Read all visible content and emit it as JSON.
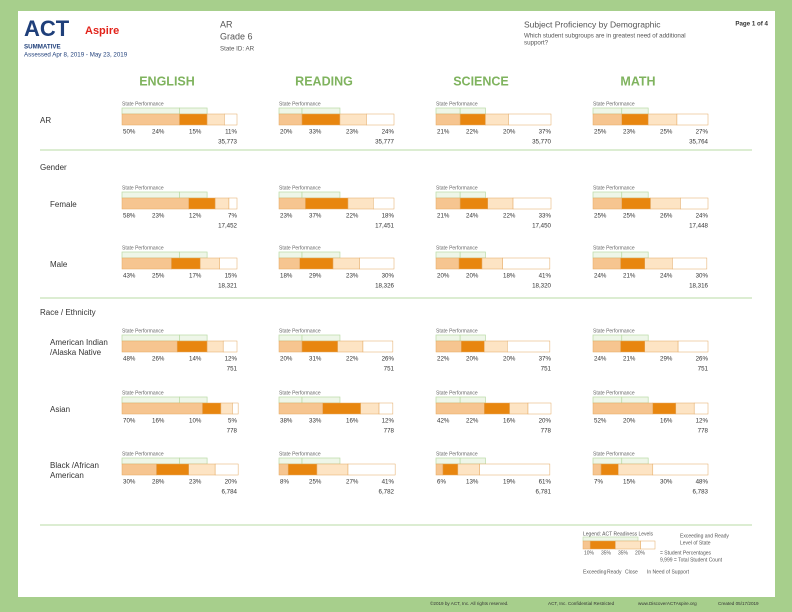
{
  "header": {
    "logo_act": "ACT",
    "logo_aspire": "Aspire",
    "test_type": "SUMMATIVE",
    "assessed": "Assessed Apr 8, 2019 - May 23, 2019",
    "state": "AR",
    "grade": "Grade 6",
    "state_id": "State ID: AR",
    "report_title": "Subject Proficiency by Demographic",
    "question": [
      "Which student subgroups are in greatest need of additional",
      "support?"
    ],
    "page": "Page 1 of 4"
  },
  "state_label": "State Performance",
  "subjects": [
    "ENGLISH",
    "READING",
    "SCIENCE",
    "MATH"
  ],
  "top_row": {
    "label": "AR",
    "cells": [
      {
        "values": [
          50,
          24,
          15,
          11
        ],
        "value_labels": [
          "50%",
          "24%",
          "15%",
          "11%"
        ],
        "count": "35,773"
      },
      {
        "values": [
          20,
          33,
          23,
          24
        ],
        "value_labels": [
          "20%",
          "33%",
          "23%",
          "24%"
        ],
        "count": "35,777"
      },
      {
        "values": [
          21,
          22,
          20,
          37
        ],
        "value_labels": [
          "21%",
          "22%",
          "20%",
          "37%"
        ],
        "count": "35,770"
      },
      {
        "values": [
          25,
          23,
          25,
          27
        ],
        "value_labels": [
          "25%",
          "23%",
          "25%",
          "27%"
        ],
        "count": "35,764"
      }
    ]
  },
  "sections": [
    {
      "title": "Gender",
      "rows": [
        {
          "label": [
            "Female"
          ],
          "cells": [
            {
              "values": [
                58,
                23,
                12,
                7
              ],
              "value_labels": [
                "58%",
                "23%",
                "12%",
                "7%"
              ],
              "count": "17,452"
            },
            {
              "values": [
                23,
                37,
                22,
                18
              ],
              "value_labels": [
                "23%",
                "37%",
                "22%",
                "18%"
              ],
              "count": "17,451"
            },
            {
              "values": [
                21,
                24,
                22,
                33
              ],
              "value_labels": [
                "21%",
                "24%",
                "22%",
                "33%"
              ],
              "count": "17,450"
            },
            {
              "values": [
                25,
                25,
                26,
                24
              ],
              "value_labels": [
                "25%",
                "25%",
                "26%",
                "24%"
              ],
              "count": "17,448"
            }
          ]
        },
        {
          "label": [
            "Male"
          ],
          "cells": [
            {
              "values": [
                43,
                25,
                17,
                15
              ],
              "value_labels": [
                "43%",
                "25%",
                "17%",
                "15%"
              ],
              "count": "18,321"
            },
            {
              "values": [
                18,
                29,
                23,
                30
              ],
              "value_labels": [
                "18%",
                "29%",
                "23%",
                "30%"
              ],
              "count": "18,326"
            },
            {
              "values": [
                20,
                20,
                18,
                41
              ],
              "value_labels": [
                "20%",
                "20%",
                "18%",
                "41%"
              ],
              "count": "18,320"
            },
            {
              "values": [
                24,
                21,
                24,
                30
              ],
              "value_labels": [
                "24%",
                "21%",
                "24%",
                "30%"
              ],
              "count": "18,316"
            }
          ]
        }
      ]
    },
    {
      "title": "Race / Ethnicity",
      "rows": [
        {
          "label": [
            "American Indian",
            "/Alaska Native"
          ],
          "cells": [
            {
              "values": [
                48,
                26,
                14,
                12
              ],
              "value_labels": [
                "48%",
                "26%",
                "14%",
                "12%"
              ],
              "count": "751"
            },
            {
              "values": [
                20,
                31,
                22,
                26
              ],
              "value_labels": [
                "20%",
                "31%",
                "22%",
                "26%"
              ],
              "count": "751"
            },
            {
              "values": [
                22,
                20,
                20,
                37
              ],
              "value_labels": [
                "22%",
                "20%",
                "20%",
                "37%"
              ],
              "count": "751"
            },
            {
              "values": [
                24,
                21,
                29,
                26
              ],
              "value_labels": [
                "24%",
                "21%",
                "29%",
                "26%"
              ],
              "count": "751"
            }
          ]
        },
        {
          "label": [
            "Asian"
          ],
          "cells": [
            {
              "values": [
                70,
                16,
                10,
                5
              ],
              "value_labels": [
                "70%",
                "16%",
                "10%",
                "5%"
              ],
              "count": "778"
            },
            {
              "values": [
                38,
                33,
                16,
                12
              ],
              "value_labels": [
                "38%",
                "33%",
                "16%",
                "12%"
              ],
              "count": "778"
            },
            {
              "values": [
                42,
                22,
                16,
                20
              ],
              "value_labels": [
                "42%",
                "22%",
                "16%",
                "20%"
              ],
              "count": "778"
            },
            {
              "values": [
                52,
                20,
                16,
                12
              ],
              "value_labels": [
                "52%",
                "20%",
                "16%",
                "12%"
              ],
              "count": "778"
            }
          ]
        },
        {
          "label": [
            "Black /African",
            "American"
          ],
          "cells": [
            {
              "values": [
                30,
                28,
                23,
                20
              ],
              "value_labels": [
                "30%",
                "28%",
                "23%",
                "20%"
              ],
              "count": "6,784"
            },
            {
              "values": [
                8,
                25,
                27,
                41
              ],
              "value_labels": [
                "8%",
                "25%",
                "27%",
                "41%"
              ],
              "count": "6,782"
            },
            {
              "values": [
                6,
                13,
                19,
                61
              ],
              "value_labels": [
                "6%",
                "13%",
                "19%",
                "61%"
              ],
              "count": "6,781"
            },
            {
              "values": [
                7,
                15,
                30,
                48
              ],
              "value_labels": [
                "7%",
                "15%",
                "30%",
                "48%"
              ],
              "count": "6,783"
            }
          ]
        }
      ]
    }
  ],
  "legend": {
    "title": "Legend: ACT Readiness Levels",
    "values": [
      10,
      35,
      35,
      20
    ],
    "value_labels": [
      "10%",
      "35%",
      "35%",
      "20%"
    ],
    "state_note": [
      "Exceeding and Ready",
      "Level of State"
    ],
    "pct_note": "= Student Percentages",
    "count_note": "9,999 = Total Student Count",
    "levels": [
      "Exceeding",
      "Ready",
      "Close",
      "In Need of Support"
    ]
  },
  "footer": [
    "©2019 by ACT, Inc. All rights reserved.",
    "ACT, Inc. Confidential Restricted",
    "www.DiscoverACTAspire.org",
    "Created 05/17/2019"
  ]
}
